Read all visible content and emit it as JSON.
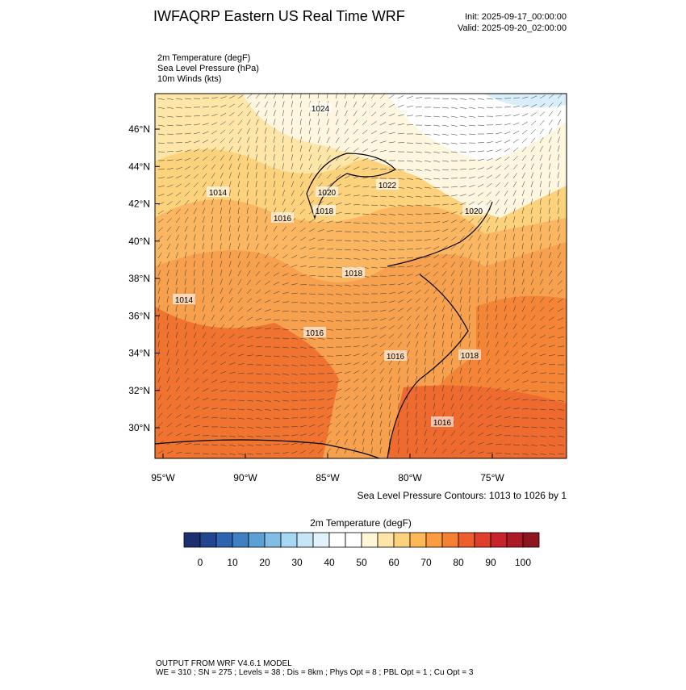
{
  "header": {
    "title": "IWFAQRP Eastern US Real Time WRF",
    "init": "Init: 2025-09-17_00:00:00",
    "valid": "Valid: 2025-09-20_02:00:00"
  },
  "fields": [
    "2m Temperature   (degF)",
    "Sea Level Pressure   (hPa)",
    "10m Winds   (kts)"
  ],
  "map": {
    "lat_labels": [
      "46°N",
      "44°N",
      "42°N",
      "40°N",
      "38°N",
      "36°N",
      "34°N",
      "32°N",
      "30°N"
    ],
    "lon_labels": [
      "95°W",
      "90°W",
      "85°W",
      "80°W",
      "75°W"
    ],
    "contour_labels": [
      "1024",
      "1020",
      "1018",
      "1016",
      "1014",
      "1022",
      "1020",
      "1018",
      "1016",
      "1016",
      "1018",
      "1016",
      "1014"
    ],
    "contour_note": "Sea Level Pressure Contours: 1013 to 1026 by 1"
  },
  "colorbar": {
    "title": "2m Temperature  (degF)",
    "labels": [
      "0",
      "10",
      "20",
      "30",
      "40",
      "50",
      "60",
      "70",
      "80",
      "90",
      "100"
    ],
    "colors": [
      "#1d2f6f",
      "#21468f",
      "#2e64b0",
      "#3f80c4",
      "#5ca0d6",
      "#82bde6",
      "#a6d7f3",
      "#c6e6f7",
      "#e2f2fb",
      "#ffffff",
      "#ffffff",
      "#fff6d5",
      "#fde6a8",
      "#fdd27d",
      "#fdb857",
      "#fb9c40",
      "#f57f33",
      "#ec5f2d",
      "#df3f2b",
      "#c8232a",
      "#ad1a27",
      "#8c1520"
    ]
  },
  "footer": [
    "OUTPUT FROM WRF V4.6.1 MODEL",
    "WE = 310 ; SN = 275 ; Levels = 38 ; Dis = 8km ; Phys Opt = 8 ; PBL Opt = 1 ; Cu Opt = 3"
  ]
}
